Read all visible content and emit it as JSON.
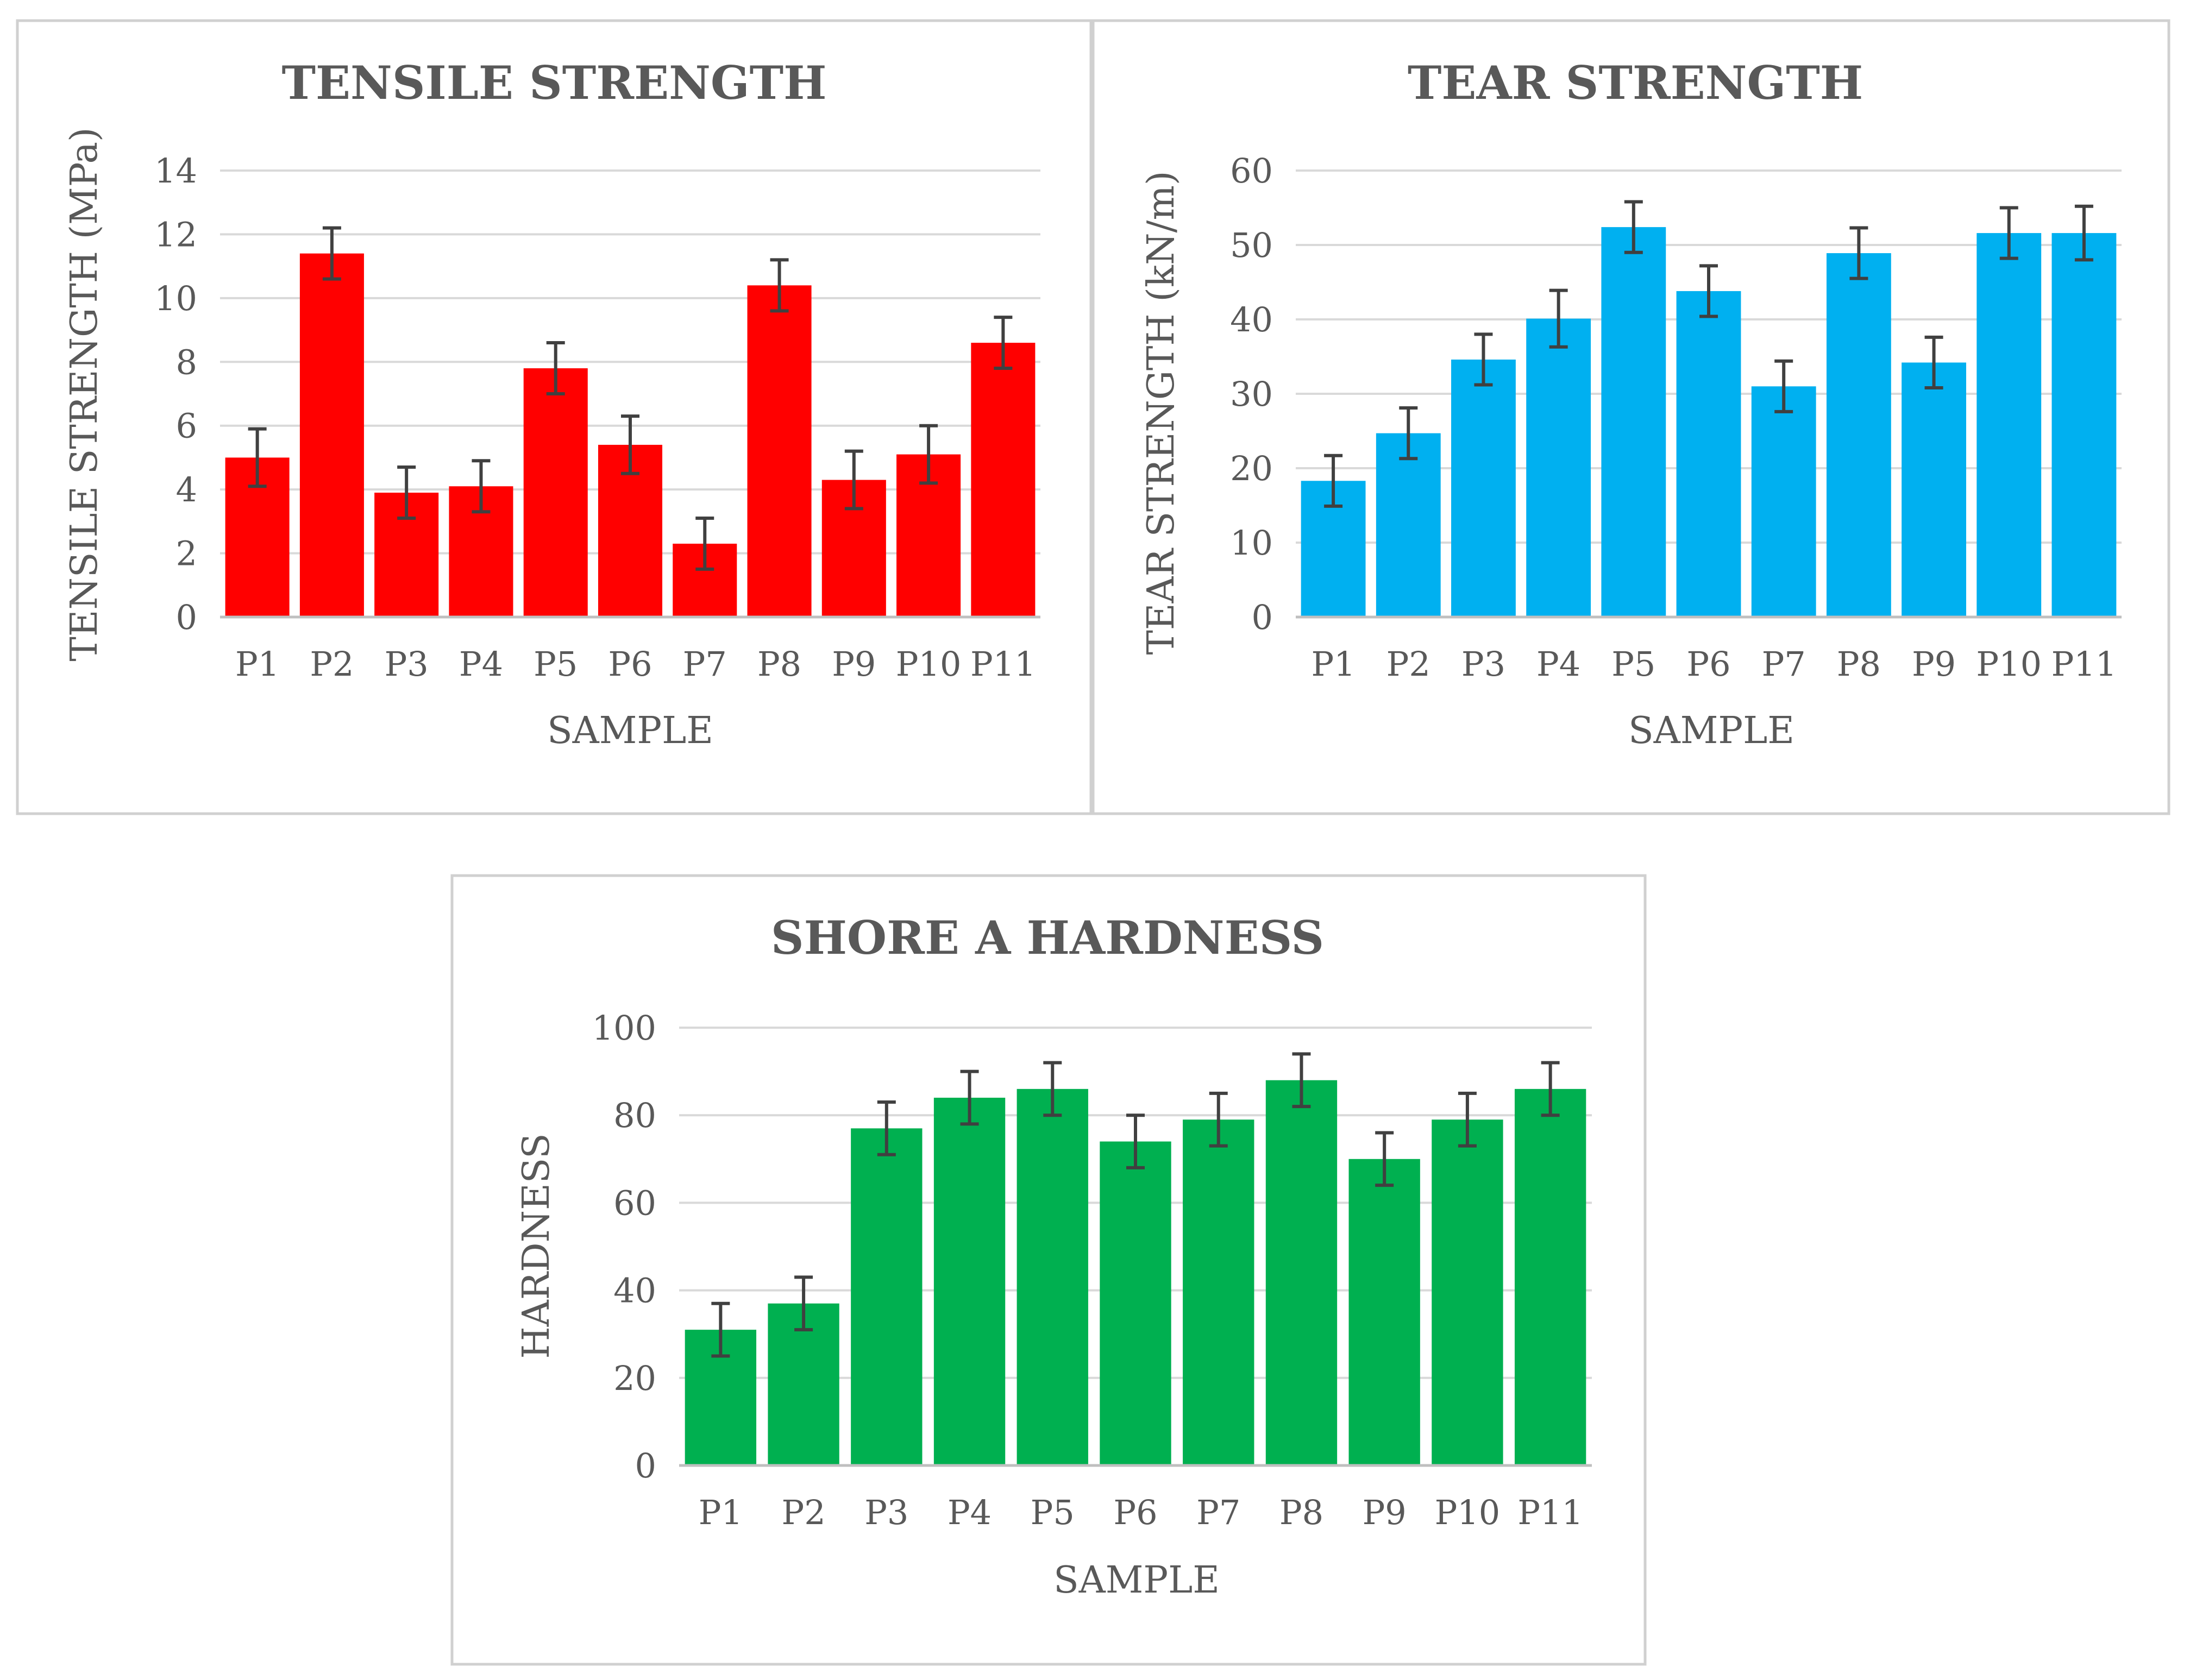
{
  "chart_data": [
    {
      "type": "bar",
      "title": "TENSILE STRENGTH",
      "xlabel": "SAMPLE",
      "ylabel": "TENSILE STRENGTH (MPa)",
      "ylim": [
        0,
        14
      ],
      "yticks": [
        "0",
        "2",
        "4",
        "6",
        "8",
        "10",
        "12",
        "14"
      ],
      "categories": [
        "P1",
        "P2",
        "P3",
        "P4",
        "P5",
        "P6",
        "P7",
        "P8",
        "P9",
        "P10",
        "P11"
      ],
      "values": [
        5.0,
        11.4,
        3.9,
        4.1,
        7.8,
        5.4,
        2.3,
        10.4,
        4.3,
        5.1,
        8.6
      ],
      "errors": [
        0.9,
        0.8,
        0.8,
        0.8,
        0.8,
        0.9,
        0.8,
        0.8,
        0.9,
        0.9,
        0.8
      ],
      "color": "#ff0000",
      "grid": true
    },
    {
      "type": "bar",
      "title": "TEAR STRENGTH",
      "xlabel": "SAMPLE",
      "ylabel": "TEAR STRENGTH (kN/m)",
      "ylim": [
        0,
        60
      ],
      "yticks": [
        "0",
        "10",
        "20",
        "30",
        "40",
        "50",
        "60"
      ],
      "categories": [
        "P1",
        "P2",
        "P3",
        "P4",
        "P5",
        "P6",
        "P7",
        "P8",
        "P9",
        "P10",
        "P11"
      ],
      "values": [
        18.3,
        24.7,
        34.6,
        40.1,
        52.4,
        43.8,
        31.0,
        48.9,
        34.2,
        51.6,
        51.6
      ],
      "errors": [
        3.4,
        3.4,
        3.4,
        3.8,
        3.4,
        3.4,
        3.4,
        3.4,
        3.4,
        3.4,
        3.6
      ],
      "color": "#00b0f0",
      "grid": true
    },
    {
      "type": "bar",
      "title": "SHORE A HARDNESS",
      "xlabel": "SAMPLE",
      "ylabel": "HARDNESS",
      "ylim": [
        0,
        100
      ],
      "yticks": [
        "0",
        "20",
        "40",
        "60",
        "80",
        "100"
      ],
      "categories": [
        "P1",
        "P2",
        "P3",
        "P4",
        "P5",
        "P6",
        "P7",
        "P8",
        "P9",
        "P10",
        "P11"
      ],
      "values": [
        31,
        37,
        77,
        84,
        86,
        74,
        79,
        88,
        70,
        79,
        86
      ],
      "errors": [
        6,
        6,
        6,
        6,
        6,
        6,
        6,
        6,
        6,
        6,
        6
      ],
      "color": "#00b050",
      "grid": true
    }
  ]
}
